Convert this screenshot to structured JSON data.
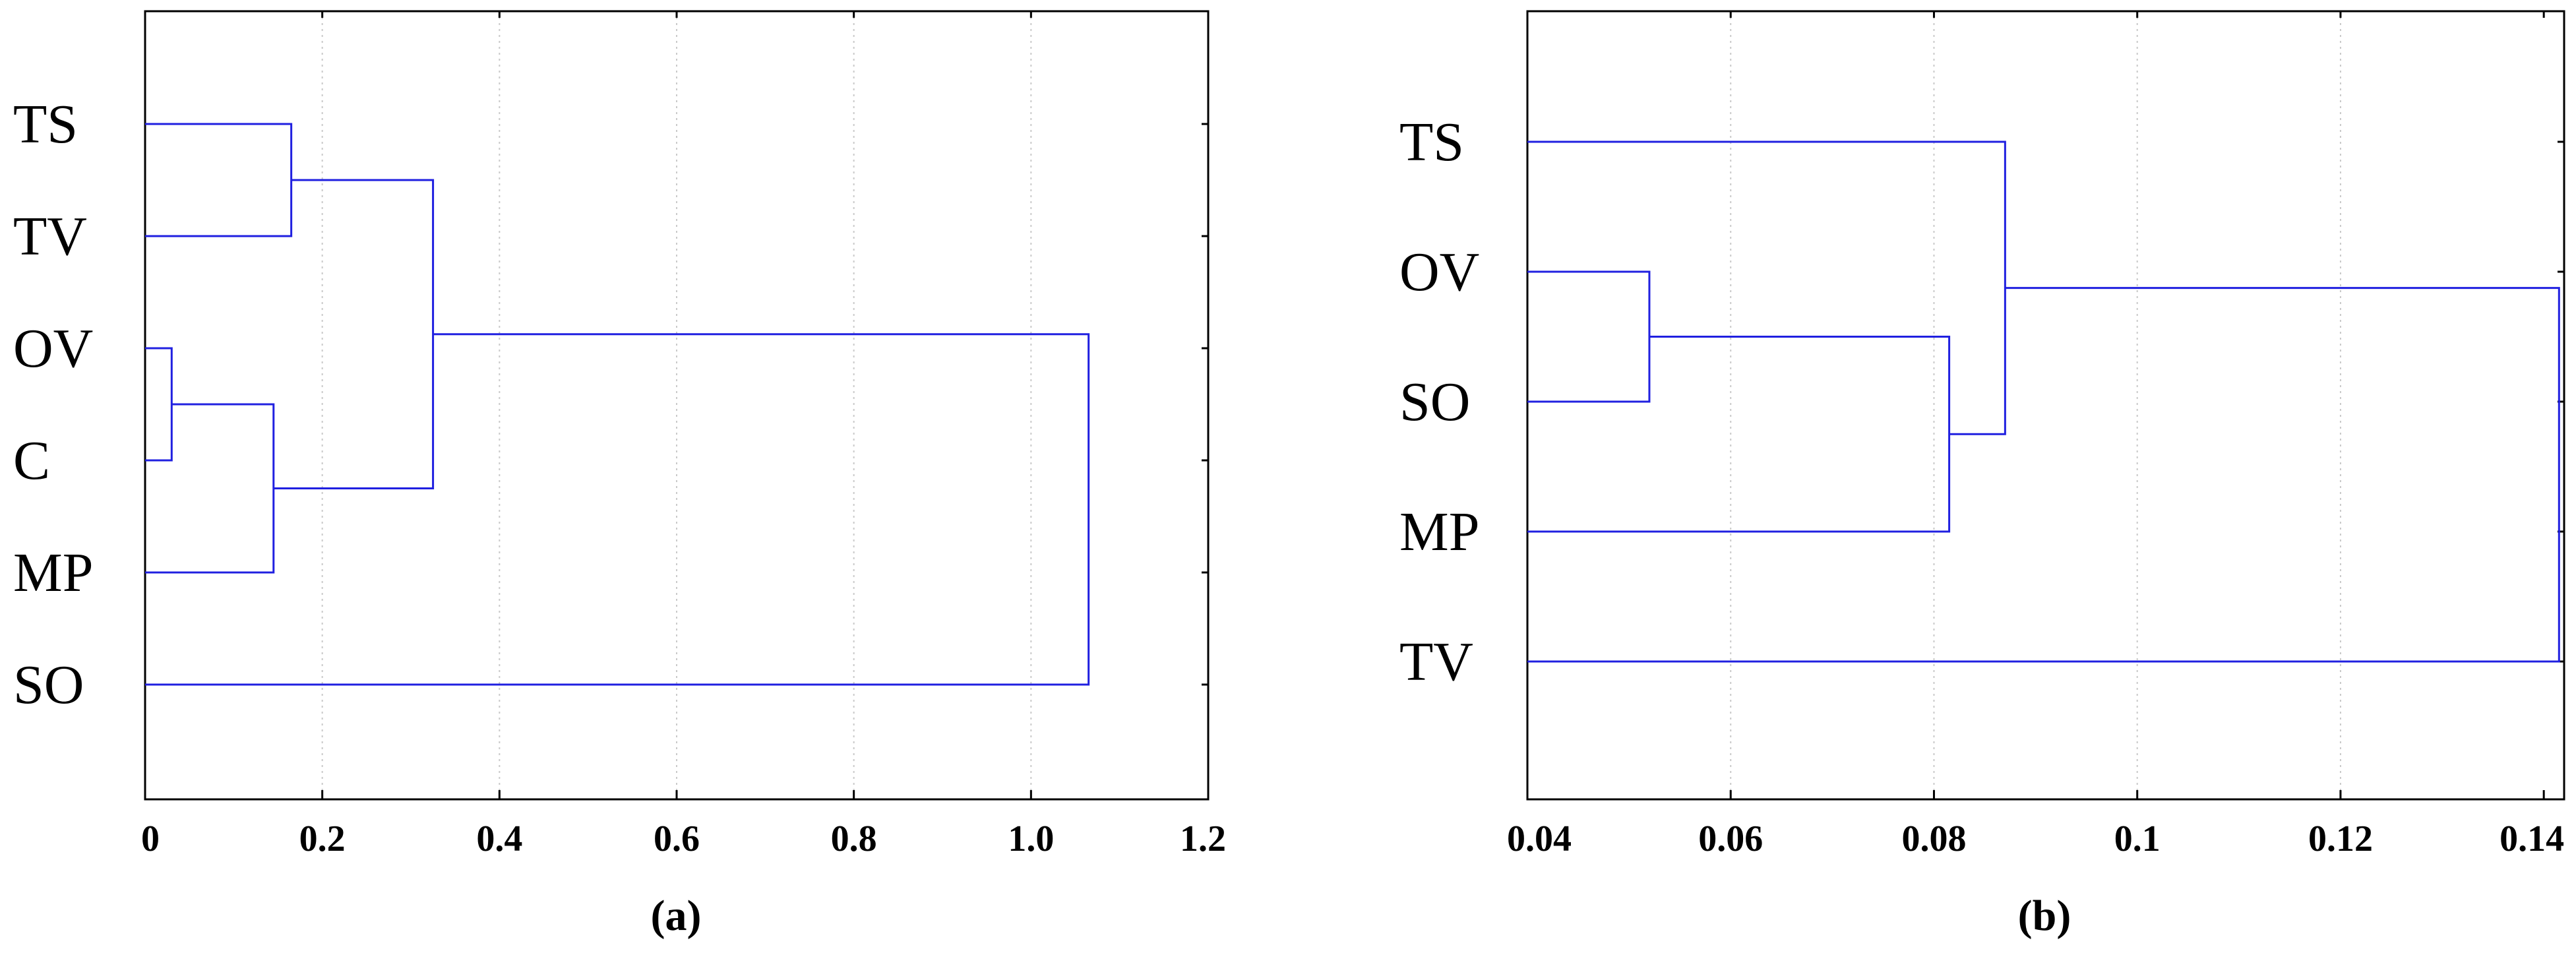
{
  "chart_data": [
    {
      "type": "dendrogram",
      "caption": "(a)",
      "leaves": [
        "TS",
        "TV",
        "OV",
        "C",
        "MP",
        "SO"
      ],
      "xlim": [
        0,
        1.2
      ],
      "xticks": [
        0,
        0.2,
        0.4,
        0.6,
        0.8,
        1.0,
        1.2
      ],
      "xtick_labels": [
        "0",
        "0.2",
        "0.4",
        "0.6",
        "0.8",
        "1.0",
        "1.2"
      ],
      "grid": true,
      "merges": [
        {
          "members": [
            "OV",
            "C"
          ],
          "height": 0.03
        },
        {
          "members": [
            "OV+C",
            "MP"
          ],
          "height": 0.145
        },
        {
          "members": [
            "TS",
            "TV"
          ],
          "height": 0.165
        },
        {
          "members": [
            "TS+TV",
            "OV+C+MP"
          ],
          "height": 0.325
        },
        {
          "members": [
            "TS+TV+OV+C+MP",
            "SO"
          ],
          "height": 1.065
        }
      ]
    },
    {
      "type": "dendrogram",
      "caption": "(b)",
      "leaves": [
        "TS",
        "OV",
        "SO",
        "MP",
        "TV"
      ],
      "xlim": [
        0.04,
        0.142
      ],
      "xticks": [
        0.04,
        0.06,
        0.08,
        0.1,
        0.12,
        0.14
      ],
      "xtick_labels": [
        "0.04",
        "0.06",
        "0.08",
        "0.1",
        "0.12",
        "0.14"
      ],
      "grid": true,
      "merges": [
        {
          "members": [
            "OV",
            "SO"
          ],
          "height": 0.052
        },
        {
          "members": [
            "OV+SO",
            "MP"
          ],
          "height": 0.0815
        },
        {
          "members": [
            "TS",
            "OV+SO+MP"
          ],
          "height": 0.087
        },
        {
          "members": [
            "TS+OV+SO+MP",
            "TV"
          ],
          "height": 0.1415
        }
      ]
    }
  ]
}
